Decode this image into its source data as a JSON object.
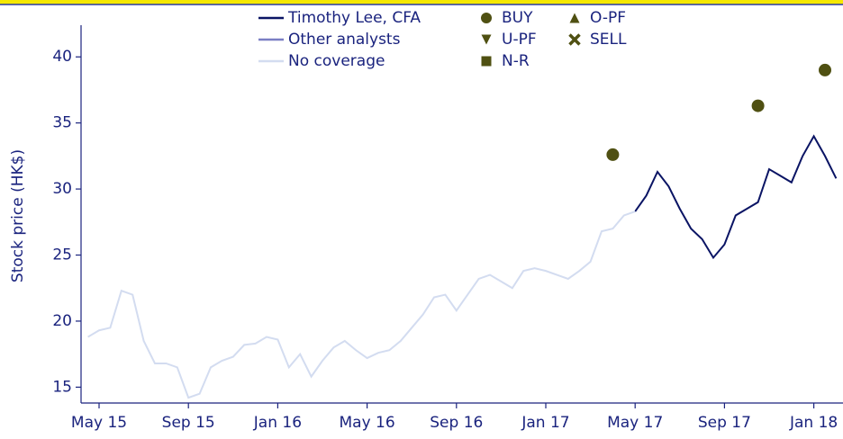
{
  "chart_data": {
    "type": "line",
    "y_label": "Stock price (HK$)",
    "categories": [
      null,
      "May 15",
      null,
      null,
      null,
      null,
      null,
      null,
      null,
      "Sep 15",
      null,
      null,
      null,
      null,
      null,
      null,
      null,
      "Jan 16",
      null,
      null,
      null,
      null,
      null,
      null,
      null,
      "May 16",
      null,
      null,
      null,
      null,
      null,
      null,
      null,
      "Sep 16",
      null,
      null,
      null,
      null,
      null,
      null,
      null,
      "Jan 17",
      null,
      null,
      null,
      null,
      null,
      null,
      null,
      "May 17",
      null,
      null,
      null,
      null,
      null,
      null,
      null,
      "Sep 17",
      null,
      null,
      null,
      null,
      null,
      null,
      null,
      "Jan 18",
      null,
      null
    ],
    "series": [
      {
        "name": "Timothy Lee, CFA",
        "color": "#0a1464",
        "kind": "line",
        "values": [
          null,
          null,
          null,
          null,
          null,
          null,
          null,
          null,
          null,
          null,
          null,
          null,
          null,
          null,
          null,
          null,
          null,
          null,
          null,
          null,
          null,
          null,
          null,
          null,
          null,
          null,
          null,
          null,
          null,
          null,
          null,
          null,
          null,
          null,
          null,
          null,
          null,
          null,
          null,
          null,
          null,
          null,
          null,
          null,
          null,
          null,
          null,
          null,
          null,
          28.3,
          29.5,
          31.3,
          30.2,
          28.5,
          27.0,
          26.2,
          24.8,
          25.8,
          28.0,
          28.5,
          29.0,
          31.5,
          31.0,
          30.5,
          32.5,
          34.0,
          32.5,
          30.8
        ]
      },
      {
        "name": "Other analysts",
        "color": "#7b7fc4",
        "kind": "line"
      },
      {
        "name": "No coverage",
        "color": "#d3dcf0",
        "kind": "line",
        "values": [
          18.8,
          19.3,
          19.5,
          22.3,
          22.0,
          18.5,
          16.8,
          16.8,
          16.5,
          14.2,
          14.5,
          16.5,
          17.0,
          17.3,
          18.2,
          18.3,
          18.8,
          18.6,
          16.5,
          17.5,
          15.8,
          17.0,
          18.0,
          18.5,
          17.8,
          17.2,
          17.6,
          17.8,
          18.5,
          19.5,
          20.5,
          21.8,
          22.0,
          20.8,
          22.0,
          23.2,
          23.5,
          23.0,
          22.5,
          23.8,
          24.0,
          23.8,
          23.5,
          23.2,
          23.8,
          24.5,
          26.8,
          27.0,
          28.0,
          28.3,
          null,
          null,
          null,
          null,
          null,
          null,
          null,
          null,
          null,
          null,
          null,
          null,
          null,
          null,
          null,
          null,
          null,
          null
        ]
      },
      {
        "name": "BUY",
        "color": "#4f5012",
        "kind": "marker",
        "marker": "circle",
        "values": [
          null,
          null,
          null,
          null,
          null,
          null,
          null,
          null,
          null,
          null,
          null,
          null,
          null,
          null,
          null,
          null,
          null,
          null,
          null,
          null,
          null,
          null,
          null,
          null,
          null,
          null,
          null,
          null,
          null,
          null,
          null,
          null,
          null,
          null,
          null,
          null,
          null,
          null,
          null,
          null,
          null,
          null,
          null,
          null,
          null,
          null,
          null,
          32.6,
          null,
          null,
          null,
          null,
          null,
          null,
          null,
          null,
          null,
          null,
          null,
          null,
          36.3,
          null,
          null,
          null,
          null,
          null,
          39.0,
          null
        ]
      },
      {
        "name": "U-PF",
        "color": "#4f5012",
        "kind": "marker",
        "marker": "triangle-down"
      },
      {
        "name": "N-R",
        "color": "#4f5012",
        "kind": "marker",
        "marker": "square"
      },
      {
        "name": "O-PF",
        "color": "#4f5012",
        "kind": "marker",
        "marker": "triangle-up"
      },
      {
        "name": "SELL",
        "color": "#4f5012",
        "kind": "marker",
        "marker": "cross"
      }
    ],
    "ylim": [
      13.8,
      42.4
    ],
    "yticks": [
      15,
      20,
      25,
      30,
      35,
      40
    ],
    "grid": false
  }
}
